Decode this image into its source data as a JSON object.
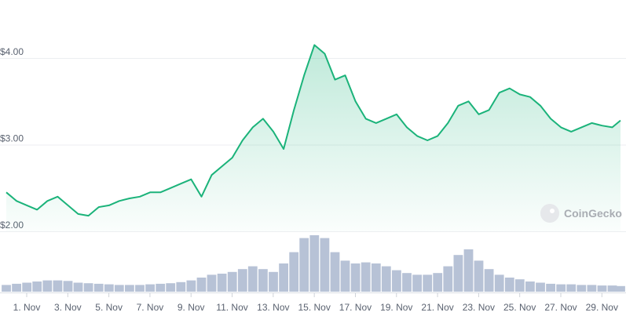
{
  "chart_data": [
    {
      "type": "area",
      "title": "",
      "ylim": [
        1.9,
        4.3
      ],
      "yticks": [
        {
          "value": 4.0,
          "label": "$4.00"
        },
        {
          "value": 3.0,
          "label": "$3.00"
        },
        {
          "value": 2.0,
          "label": "$2.00"
        }
      ],
      "grid": true,
      "line_color": "#1bb37a",
      "x": [
        0,
        0.5,
        1,
        1.5,
        2,
        2.5,
        3,
        3.5,
        4,
        4.5,
        5,
        5.5,
        6,
        6.5,
        7,
        7.5,
        8,
        8.5,
        9,
        9.5,
        10,
        10.5,
        11,
        11.5,
        12,
        12.5,
        13,
        13.5,
        14,
        14.5,
        15,
        15.5,
        16,
        16.5,
        17,
        17.5,
        18,
        18.5,
        19,
        19.5,
        20,
        20.5,
        21,
        21.5,
        22,
        22.5,
        23,
        23.5,
        24,
        24.5,
        25,
        25.5,
        26,
        26.5,
        27,
        27.5,
        28,
        28.5,
        29,
        29.5,
        29.9
      ],
      "values": [
        2.45,
        2.35,
        2.3,
        2.25,
        2.35,
        2.4,
        2.3,
        2.2,
        2.18,
        2.28,
        2.3,
        2.35,
        2.38,
        2.4,
        2.45,
        2.45,
        2.5,
        2.55,
        2.6,
        2.4,
        2.65,
        2.75,
        2.85,
        3.05,
        3.2,
        3.3,
        3.15,
        2.95,
        3.4,
        3.8,
        4.15,
        4.05,
        3.75,
        3.8,
        3.5,
        3.3,
        3.25,
        3.3,
        3.35,
        3.2,
        3.1,
        3.05,
        3.1,
        3.25,
        3.45,
        3.5,
        3.35,
        3.4,
        3.6,
        3.65,
        3.58,
        3.55,
        3.45,
        3.3,
        3.2,
        3.15,
        3.2,
        3.25,
        3.22,
        3.2,
        3.28
      ]
    },
    {
      "type": "bar",
      "name": "volume",
      "bar_color": "#b7c2d6",
      "x": [
        0,
        0.5,
        1,
        1.5,
        2,
        2.5,
        3,
        3.5,
        4,
        4.5,
        5,
        5.5,
        6,
        6.5,
        7,
        7.5,
        8,
        8.5,
        9,
        9.5,
        10,
        10.5,
        11,
        11.5,
        12,
        12.5,
        13,
        13.5,
        14,
        14.5,
        15,
        15.5,
        16,
        16.5,
        17,
        17.5,
        18,
        18.5,
        19,
        19.5,
        20,
        20.5,
        21,
        21.5,
        22,
        22.5,
        23,
        23.5,
        24,
        24.5,
        25,
        25.5,
        26,
        26.5,
        27,
        27.5,
        28,
        28.5,
        29,
        29.5,
        29.9
      ],
      "values": [
        0.12,
        0.14,
        0.16,
        0.18,
        0.2,
        0.2,
        0.19,
        0.16,
        0.15,
        0.14,
        0.13,
        0.12,
        0.12,
        0.12,
        0.13,
        0.14,
        0.15,
        0.17,
        0.2,
        0.25,
        0.3,
        0.32,
        0.35,
        0.4,
        0.45,
        0.4,
        0.35,
        0.5,
        0.7,
        0.95,
        1.0,
        0.95,
        0.7,
        0.55,
        0.5,
        0.52,
        0.5,
        0.45,
        0.38,
        0.33,
        0.3,
        0.3,
        0.33,
        0.45,
        0.65,
        0.75,
        0.55,
        0.4,
        0.3,
        0.25,
        0.22,
        0.18,
        0.16,
        0.14,
        0.13,
        0.13,
        0.12,
        0.12,
        0.11,
        0.11,
        0.1
      ]
    }
  ],
  "x_axis": {
    "ticks": [
      {
        "value": 0,
        "label": "1. Nov"
      },
      {
        "value": 2,
        "label": "3. Nov"
      },
      {
        "value": 4,
        "label": "5. Nov"
      },
      {
        "value": 6,
        "label": "7. Nov"
      },
      {
        "value": 8,
        "label": "9. Nov"
      },
      {
        "value": 10,
        "label": "11. Nov"
      },
      {
        "value": 12,
        "label": "13. Nov"
      },
      {
        "value": 14,
        "label": "15. Nov"
      },
      {
        "value": 16,
        "label": "17. Nov"
      },
      {
        "value": 18,
        "label": "19. Nov"
      },
      {
        "value": 20,
        "label": "21. Nov"
      },
      {
        "value": 22,
        "label": "23. Nov"
      },
      {
        "value": 24,
        "label": "25. Nov"
      },
      {
        "value": 26,
        "label": "27. Nov"
      },
      {
        "value": 28,
        "label": "29. Nov"
      }
    ]
  },
  "watermark": {
    "text": "CoinGecko",
    "icon": "gecko-logo-icon"
  }
}
